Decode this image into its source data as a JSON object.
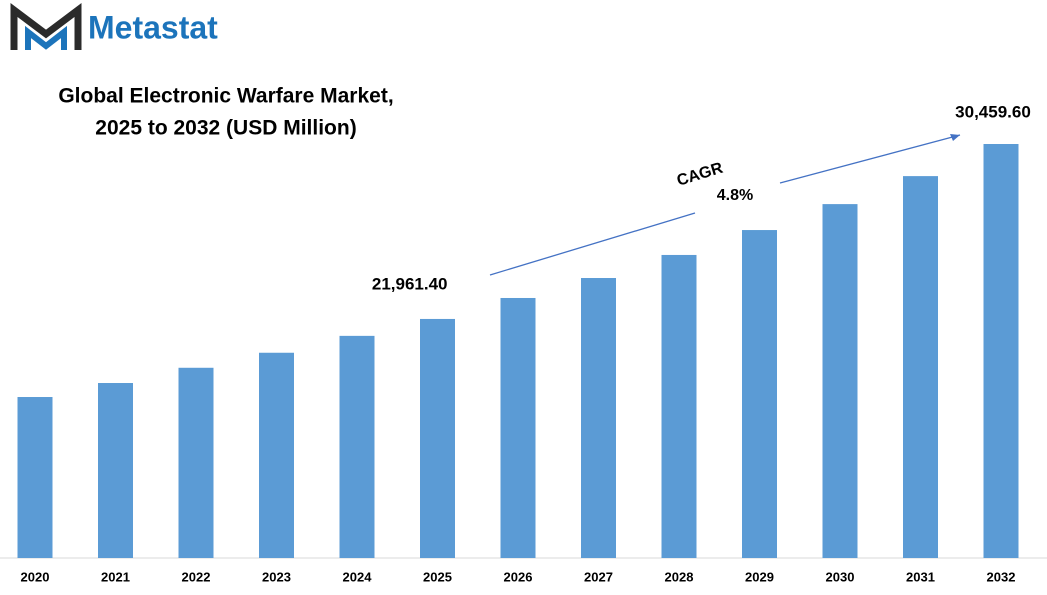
{
  "logo": "Metastat",
  "chart_data": {
    "type": "bar",
    "title": [
      "Global Electronic Warfare Market,",
      "2025 to 2032 (USD Million)"
    ],
    "categories": [
      "2020",
      "2021",
      "2022",
      "2023",
      "2024",
      "2025",
      "2026",
      "2027",
      "2028",
      "2029",
      "2030",
      "2031",
      "2032"
    ],
    "values": [
      18170,
      18850,
      19590,
      20320,
      21140,
      21961.4,
      22980,
      23950,
      25070,
      26280,
      27540,
      28900,
      30459.6
    ],
    "value_labels": [
      null,
      null,
      null,
      null,
      null,
      "21,961.40",
      null,
      null,
      null,
      null,
      null,
      null,
      "30,459.60"
    ],
    "annotations": [
      "CAGR",
      "4.8%"
    ],
    "color": "#5b9bd5",
    "ylim": [
      10350,
      30459.6
    ]
  }
}
